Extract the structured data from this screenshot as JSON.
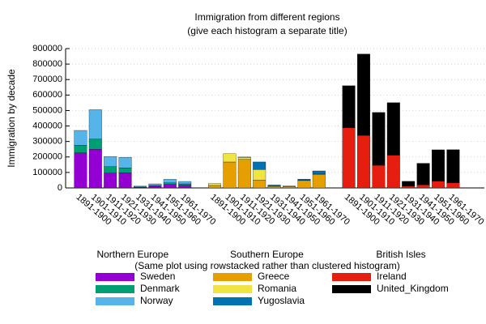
{
  "chart_data": {
    "type": "bar",
    "stacking": "rowstacked",
    "title": "Immigration from different regions",
    "subtitle": "(give each histogram a separate title)",
    "ylabel": "Immigration by decade",
    "note": "(Same plot using rowstacked rather than clustered histogram)",
    "ylim": [
      0,
      900000
    ],
    "yticks": [
      0,
      100000,
      200000,
      300000,
      400000,
      500000,
      600000,
      700000,
      800000,
      900000
    ],
    "grid": true,
    "groups": [
      {
        "title": "Northern Europe",
        "categories": [
          "1891-1900",
          "1901-1910",
          "1911-1920",
          "1921-1930",
          "1931-1940",
          "1941-1950",
          "1951-1960",
          "1961-1970"
        ],
        "series": [
          {
            "name": "Sweden",
            "color": "#9400d3",
            "values": [
              226266,
              249534,
              95074,
              97249,
              3960,
              10665,
              21697,
              17116
            ]
          },
          {
            "name": "Denmark",
            "color": "#009e73",
            "values": [
              50231,
              65285,
              41983,
              32430,
              2559,
              5393,
              10984,
              9201
            ]
          },
          {
            "name": "Norway",
            "color": "#56b4e9",
            "values": [
              95015,
              190505,
              66395,
              68531,
              4740,
              10100,
              22935,
              15484
            ]
          }
        ]
      },
      {
        "title": "Southern Europe",
        "categories": [
          "1891-1900",
          "1901-1910",
          "1911-1920",
          "1921-1930",
          "1931-1940",
          "1941-1950",
          "1951-1960",
          "1961-1970"
        ],
        "series": [
          {
            "name": "Greece",
            "color": "#e69f00",
            "values": [
              15979,
              167519,
              184201,
              51084,
              9119,
              8973,
              47608,
              85969
            ]
          },
          {
            "name": "Romania",
            "color": "#f0e442",
            "values": [
              12750,
              53008,
              13311,
              67646,
              3871,
              1076,
              1039,
              3531
            ]
          },
          {
            "name": "Yugoslavia",
            "color": "#0072b2",
            "values": [
              0,
              0,
              1888,
              49064,
              5835,
              1576,
              8225,
              20381
            ]
          }
        ]
      },
      {
        "title": "British Isles",
        "categories": [
          "1891-1900",
          "1901-1910",
          "1911-1920",
          "1921-1930",
          "1931-1940",
          "1941-1950",
          "1951-1960",
          "1961-1970"
        ],
        "series": [
          {
            "name": "Ireland",
            "color": "#e51e10",
            "values": [
              388416,
              339065,
              146181,
              211234,
              10973,
              19789,
              43362,
              32966
            ]
          },
          {
            "name": "United_Kingdom",
            "color": "#000000",
            "values": [
              271538,
              525950,
              341408,
              339570,
              31572,
              139306,
              202824,
              213822
            ]
          }
        ]
      }
    ]
  }
}
